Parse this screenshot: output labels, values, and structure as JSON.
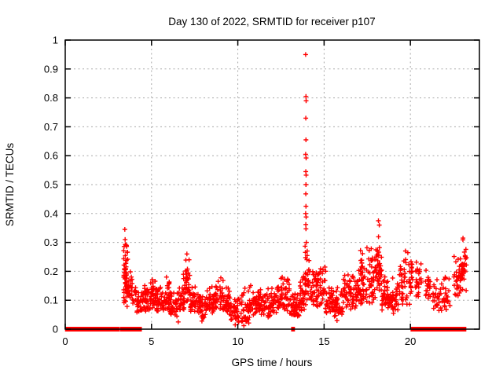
{
  "chart_data": {
    "type": "scatter",
    "title": "Day 130 of 2022, SRMTID for receiver p107",
    "xlabel": "GPS time / hours",
    "ylabel": "SRMTID / TECUs",
    "xlim": [
      0,
      24
    ],
    "ylim": [
      0,
      1
    ],
    "x_tick_values": [
      0,
      5,
      10,
      15,
      20
    ],
    "x_tick_labels": [
      "0",
      "5",
      "10",
      "15",
      "20"
    ],
    "y_tick_values": [
      0,
      0.1,
      0.2,
      0.3,
      0.4,
      0.5,
      0.6,
      0.7,
      0.8,
      0.9,
      1
    ],
    "y_tick_labels": [
      "0",
      "0.1",
      "0.2",
      "0.3",
      "0.4",
      "0.5",
      "0.6",
      "0.7",
      "0.8",
      "0.9",
      "1"
    ],
    "grid": "dashed-major",
    "grid_color": "#a8a8a8",
    "border_color": "#000000",
    "legend": "none",
    "marker": "plus",
    "marker_color": "#ff0000",
    "seed": 20220130,
    "series": [
      {
        "name": "SRMTID",
        "zero_segments": [
          [
            0.08,
            0.45
          ],
          [
            0.6,
            0.8
          ],
          [
            0.95,
            1.05
          ],
          [
            1.15,
            1.27
          ],
          [
            1.35,
            2.42
          ],
          [
            2.5,
            2.8
          ],
          [
            2.9,
            3.05
          ],
          [
            3.25,
            3.65
          ],
          [
            3.8,
            4.0
          ],
          [
            4.15,
            4.2
          ],
          [
            4.3,
            4.35
          ],
          [
            13.18,
            13.22
          ],
          [
            20.1,
            20.3
          ],
          [
            20.4,
            20.75
          ],
          [
            20.9,
            21.55
          ],
          [
            21.65,
            21.8
          ],
          [
            21.9,
            22.0
          ],
          [
            22.05,
            22.55
          ],
          [
            22.6,
            22.75
          ],
          [
            22.85,
            23.0
          ],
          [
            23.05,
            23.15
          ]
        ],
        "outlier_points": [
          [
            13.93,
            0.95
          ],
          [
            13.95,
            0.805
          ],
          [
            13.96,
            0.79
          ],
          [
            13.94,
            0.73
          ],
          [
            13.95,
            0.655
          ],
          [
            13.93,
            0.605
          ],
          [
            13.96,
            0.592
          ],
          [
            13.94,
            0.545
          ],
          [
            13.96,
            0.533
          ],
          [
            13.95,
            0.5
          ],
          [
            13.94,
            0.468
          ],
          [
            13.95,
            0.425
          ],
          [
            13.93,
            0.4
          ],
          [
            13.96,
            0.388
          ],
          [
            13.94,
            0.362
          ],
          [
            13.95,
            0.347
          ],
          [
            13.97,
            0.3
          ],
          [
            13.9,
            0.287
          ],
          [
            14.02,
            0.27
          ],
          [
            3.45,
            0.345
          ],
          [
            3.47,
            0.31
          ],
          [
            7.05,
            0.26
          ],
          [
            18.15,
            0.375
          ],
          [
            18.2,
            0.36
          ],
          [
            23.05,
            0.315
          ],
          [
            6.55,
            0.025
          ],
          [
            7.92,
            0.028
          ],
          [
            9.85,
            0.015
          ],
          [
            10.35,
            0.012
          ],
          [
            15.75,
            0.03
          ]
        ],
        "noise_bands": [
          [
            3.38,
            3.62,
            0.07,
            0.345,
            60
          ],
          [
            3.62,
            3.9,
            0.1,
            0.225,
            20
          ],
          [
            3.9,
            4.15,
            0.08,
            0.165,
            14
          ],
          [
            4.15,
            4.55,
            0.05,
            0.155,
            28
          ],
          [
            4.55,
            4.95,
            0.06,
            0.175,
            32
          ],
          [
            4.95,
            5.3,
            0.07,
            0.215,
            36
          ],
          [
            5.3,
            5.7,
            0.05,
            0.165,
            34
          ],
          [
            5.7,
            6.1,
            0.06,
            0.185,
            34
          ],
          [
            6.1,
            6.5,
            0.04,
            0.135,
            30
          ],
          [
            6.5,
            6.9,
            0.05,
            0.155,
            30
          ],
          [
            6.85,
            7.25,
            0.08,
            0.265,
            36
          ],
          [
            7.25,
            7.7,
            0.05,
            0.165,
            32
          ],
          [
            7.7,
            8.2,
            0.03,
            0.135,
            36
          ],
          [
            8.2,
            8.7,
            0.05,
            0.155,
            36
          ],
          [
            8.7,
            9.15,
            0.06,
            0.195,
            32
          ],
          [
            9.15,
            9.6,
            0.04,
            0.155,
            34
          ],
          [
            9.6,
            10.1,
            0.02,
            0.125,
            36
          ],
          [
            10.1,
            10.7,
            0.01,
            0.155,
            42
          ],
          [
            10.7,
            11.3,
            0.04,
            0.165,
            42
          ],
          [
            11.3,
            11.9,
            0.04,
            0.145,
            42
          ],
          [
            11.9,
            12.5,
            0.05,
            0.155,
            42
          ],
          [
            12.5,
            13.0,
            0.05,
            0.205,
            40
          ],
          [
            13.0,
            13.6,
            0.04,
            0.135,
            46
          ],
          [
            13.6,
            13.95,
            0.06,
            0.225,
            30
          ],
          [
            13.9,
            14.15,
            0.1,
            0.3,
            22
          ],
          [
            14.15,
            14.6,
            0.08,
            0.235,
            36
          ],
          [
            14.6,
            15.1,
            0.07,
            0.245,
            36
          ],
          [
            15.1,
            15.6,
            0.05,
            0.175,
            34
          ],
          [
            15.6,
            16.1,
            0.04,
            0.155,
            34
          ],
          [
            16.1,
            16.6,
            0.06,
            0.205,
            36
          ],
          [
            16.6,
            17.1,
            0.07,
            0.225,
            40
          ],
          [
            17.1,
            17.6,
            0.08,
            0.325,
            42
          ],
          [
            17.6,
            18.0,
            0.08,
            0.285,
            36
          ],
          [
            18.0,
            18.35,
            0.12,
            0.375,
            42
          ],
          [
            18.35,
            18.8,
            0.06,
            0.205,
            34
          ],
          [
            18.8,
            19.3,
            0.05,
            0.185,
            34
          ],
          [
            19.3,
            19.7,
            0.08,
            0.265,
            30
          ],
          [
            19.7,
            20.15,
            0.08,
            0.3,
            30
          ],
          [
            20.3,
            20.65,
            0.1,
            0.27,
            24
          ],
          [
            20.85,
            21.15,
            0.1,
            0.215,
            20
          ],
          [
            21.3,
            21.85,
            0.06,
            0.185,
            28
          ],
          [
            21.9,
            22.3,
            0.05,
            0.205,
            24
          ],
          [
            22.5,
            22.95,
            0.11,
            0.275,
            30
          ],
          [
            22.95,
            23.25,
            0.13,
            0.315,
            32
          ]
        ]
      }
    ]
  }
}
